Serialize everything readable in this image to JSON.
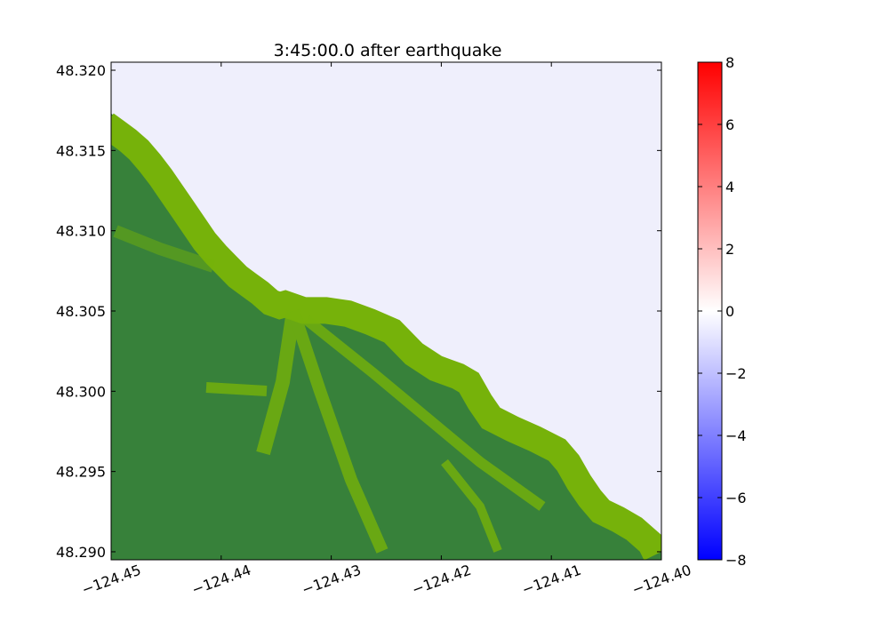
{
  "chart_data": {
    "type": "heatmap",
    "title": "3:45:00.0 after earthquake",
    "xlabel": "",
    "ylabel": "",
    "xlim": [
      -124.45,
      -124.4
    ],
    "ylim": [
      48.2895,
      48.3205
    ],
    "x_ticks": [
      -124.45,
      -124.44,
      -124.43,
      -124.42,
      -124.41,
      -124.4
    ],
    "x_tick_labels": [
      "−124.45",
      "−124.44",
      "−124.43",
      "−124.42",
      "−124.41",
      "−124.40"
    ],
    "y_ticks": [
      48.29,
      48.295,
      48.3,
      48.305,
      48.31,
      48.315,
      48.32
    ],
    "y_tick_labels": [
      "48.290",
      "48.295",
      "48.300",
      "48.305",
      "48.310",
      "48.315",
      "48.320"
    ],
    "colorbar": {
      "range": [
        -8,
        8
      ],
      "ticks": [
        -8,
        -6,
        -4,
        -2,
        0,
        2,
        4,
        6,
        8
      ],
      "tick_labels": [
        "−8",
        "−6",
        "−4",
        "−2",
        "0",
        "2",
        "4",
        "6",
        "8"
      ],
      "colormap": [
        "#0000ff",
        "#ffffff",
        "#ff0000"
      ]
    },
    "water_color": "#efeffc",
    "land_colors": {
      "low": "#37813a",
      "high": "#76b20a"
    },
    "coastline": [
      [
        -124.45,
        48.3173
      ],
      [
        -124.449,
        48.3168
      ],
      [
        -124.448,
        48.3163
      ],
      [
        -124.447,
        48.3157
      ],
      [
        -124.446,
        48.3149
      ],
      [
        -124.445,
        48.314
      ],
      [
        -124.444,
        48.313
      ],
      [
        -124.443,
        48.312
      ],
      [
        -124.442,
        48.311
      ],
      [
        -124.441,
        48.31
      ],
      [
        -124.44,
        48.3092
      ],
      [
        -124.439,
        48.3085
      ],
      [
        -124.438,
        48.3078
      ],
      [
        -124.437,
        48.3073
      ],
      [
        -124.436,
        48.3068
      ],
      [
        -124.435,
        48.3062
      ],
      [
        -124.4342,
        48.306
      ],
      [
        -124.4337,
        48.3061
      ],
      [
        -124.432,
        48.3057
      ],
      [
        -124.43,
        48.3057
      ],
      [
        -124.428,
        48.3055
      ],
      [
        -124.426,
        48.305
      ],
      [
        -124.424,
        48.3044
      ],
      [
        -124.422,
        48.303
      ],
      [
        -124.42,
        48.3021
      ],
      [
        -124.418,
        48.3016
      ],
      [
        -124.417,
        48.3012
      ],
      [
        -124.416,
        48.3
      ],
      [
        -124.415,
        48.299
      ],
      [
        -124.413,
        48.2983
      ],
      [
        -124.411,
        48.2977
      ],
      [
        -124.409,
        48.297
      ],
      [
        -124.408,
        48.2962
      ],
      [
        -124.407,
        48.295
      ],
      [
        -124.406,
        48.294
      ],
      [
        -124.405,
        48.2932
      ],
      [
        -124.4035,
        48.2927
      ],
      [
        -124.402,
        48.2921
      ],
      [
        -124.4005,
        48.2912
      ],
      [
        -124.4,
        48.2905
      ]
    ]
  }
}
